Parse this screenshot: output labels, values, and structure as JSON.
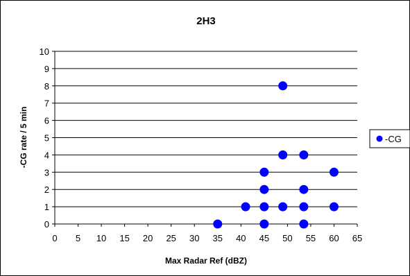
{
  "chart_data": {
    "type": "scatter",
    "title": "2H3",
    "xlabel": "Max Radar Ref (dBZ)",
    "ylabel": "-CG rate / 5 min",
    "xlim": [
      0,
      65
    ],
    "ylim": [
      0,
      10
    ],
    "xticks": [
      0,
      5,
      10,
      15,
      20,
      25,
      30,
      35,
      40,
      45,
      50,
      55,
      60,
      65
    ],
    "yticks": [
      0,
      1,
      2,
      3,
      4,
      5,
      6,
      7,
      8,
      9,
      10
    ],
    "grid": "horizontal major gridlines",
    "legend_position": "right",
    "series": [
      {
        "name": "-CG",
        "color": "#0000ff",
        "marker": "circle",
        "points": [
          {
            "x": 35,
            "y": 0
          },
          {
            "x": 41,
            "y": 1
          },
          {
            "x": 45,
            "y": 0
          },
          {
            "x": 45,
            "y": 1
          },
          {
            "x": 45,
            "y": 2
          },
          {
            "x": 45,
            "y": 3
          },
          {
            "x": 49,
            "y": 1
          },
          {
            "x": 49,
            "y": 4
          },
          {
            "x": 49,
            "y": 8
          },
          {
            "x": 53.5,
            "y": 0
          },
          {
            "x": 53.5,
            "y": 1
          },
          {
            "x": 53.5,
            "y": 2
          },
          {
            "x": 53.5,
            "y": 4
          },
          {
            "x": 60,
            "y": 1
          },
          {
            "x": 60,
            "y": 3
          }
        ]
      }
    ]
  }
}
